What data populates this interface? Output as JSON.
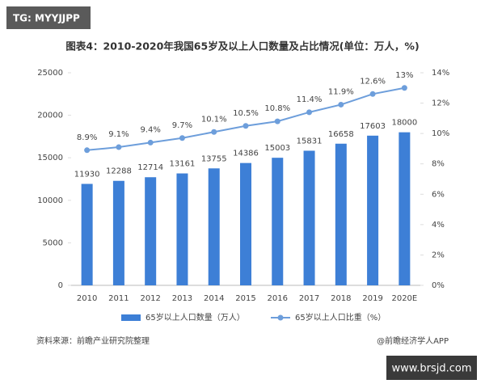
{
  "badge": "TG: MYYJJPP",
  "chart_data": {
    "type": "combo",
    "title": "图表4：2010-2020年我国65岁及以上人口数量及占比情况(单位：万人，%)",
    "categories": [
      "2010",
      "2011",
      "2012",
      "2013",
      "2014",
      "2015",
      "2016",
      "2017",
      "2018",
      "2019",
      "2020E"
    ],
    "series": [
      {
        "name": "65岁以上人口数量（万人）",
        "type": "bar",
        "color": "#3d7fd6",
        "values": [
          11930,
          12288,
          12714,
          13161,
          13755,
          14386,
          15003,
          15831,
          16658,
          17603,
          18000
        ]
      },
      {
        "name": "65岁以上人口比重（%）",
        "type": "line",
        "axis": "y2",
        "color": "#6d9edb",
        "values": [
          8.9,
          9.1,
          9.4,
          9.7,
          10.1,
          10.5,
          10.8,
          11.4,
          11.9,
          12.6,
          13
        ],
        "value_labels": [
          "8.9%",
          "9.1%",
          "9.4%",
          "9.7%",
          "10.1%",
          "10.5%",
          "10.8%",
          "11.4%",
          "11.9%",
          "12.6%",
          "13%"
        ]
      }
    ],
    "ylim": [
      0,
      25000
    ],
    "yticks": [
      0,
      5000,
      10000,
      15000,
      20000,
      25000
    ],
    "y2lim": [
      0,
      14
    ],
    "y2ticks": [
      {
        "value": 0,
        "label": "0%"
      },
      {
        "value": 2,
        "label": "2%"
      },
      {
        "value": 4,
        "label": "4%"
      },
      {
        "value": 6,
        "label": "6%"
      },
      {
        "value": 8,
        "label": "8%"
      },
      {
        "value": 10,
        "label": "10%"
      },
      {
        "value": 12,
        "label": "12%"
      },
      {
        "value": 14,
        "label": "14%"
      }
    ],
    "legend": "bottom"
  },
  "source": "资料来源：前瞻产业研究院整理",
  "credit": "@前瞻经济学人APP",
  "watermark": "www.brsjd.com"
}
